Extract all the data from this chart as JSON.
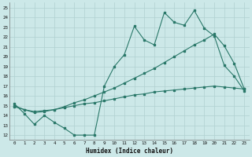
{
  "bg_color": "#cce8e8",
  "line_color": "#2a7869",
  "grid_color": "#b0d0d0",
  "xlabel": "Humidex (Indice chaleur)",
  "xlim": [
    -0.5,
    23.5
  ],
  "ylim": [
    11.5,
    25.5
  ],
  "yticks": [
    12,
    13,
    14,
    15,
    16,
    17,
    18,
    19,
    20,
    21,
    22,
    23,
    24,
    25
  ],
  "xticks": [
    0,
    1,
    2,
    3,
    4,
    5,
    6,
    7,
    8,
    9,
    10,
    11,
    12,
    13,
    14,
    15,
    16,
    17,
    18,
    19,
    20,
    21,
    22,
    23
  ],
  "line1_x": [
    0,
    1,
    2,
    3,
    4,
    5,
    6,
    7,
    8,
    9,
    10,
    11,
    12,
    13,
    14,
    15,
    16,
    17,
    18,
    19,
    20,
    21,
    22,
    23
  ],
  "line1_y": [
    15.2,
    14.2,
    13.1,
    14.0,
    13.3,
    12.7,
    12.0,
    12.0,
    12.0,
    17.0,
    19.0,
    20.2,
    23.1,
    21.7,
    21.2,
    24.5,
    23.5,
    23.2,
    24.7,
    22.9,
    22.1,
    19.1,
    18.0,
    16.5
  ],
  "line2_x": [
    0,
    1,
    2,
    3,
    4,
    5,
    6,
    7,
    8,
    9,
    10,
    11,
    12,
    13,
    14,
    15,
    16,
    17,
    18,
    19,
    20,
    21,
    22,
    23
  ],
  "line2_y": [
    15.0,
    14.6,
    14.3,
    14.4,
    14.6,
    14.9,
    15.3,
    15.6,
    16.0,
    16.4,
    16.8,
    17.3,
    17.8,
    18.3,
    18.8,
    19.4,
    20.0,
    20.6,
    21.2,
    21.7,
    22.3,
    21.1,
    19.3,
    16.7
  ],
  "line3_x": [
    0,
    1,
    2,
    3,
    4,
    5,
    6,
    7,
    8,
    9,
    10,
    11,
    12,
    13,
    14,
    15,
    16,
    17,
    18,
    19,
    20,
    21,
    22,
    23
  ],
  "line3_y": [
    14.9,
    14.6,
    14.4,
    14.5,
    14.6,
    14.8,
    15.0,
    15.2,
    15.3,
    15.5,
    15.7,
    15.9,
    16.1,
    16.2,
    16.4,
    16.5,
    16.6,
    16.7,
    16.8,
    16.9,
    17.0,
    16.9,
    16.8,
    16.7
  ]
}
